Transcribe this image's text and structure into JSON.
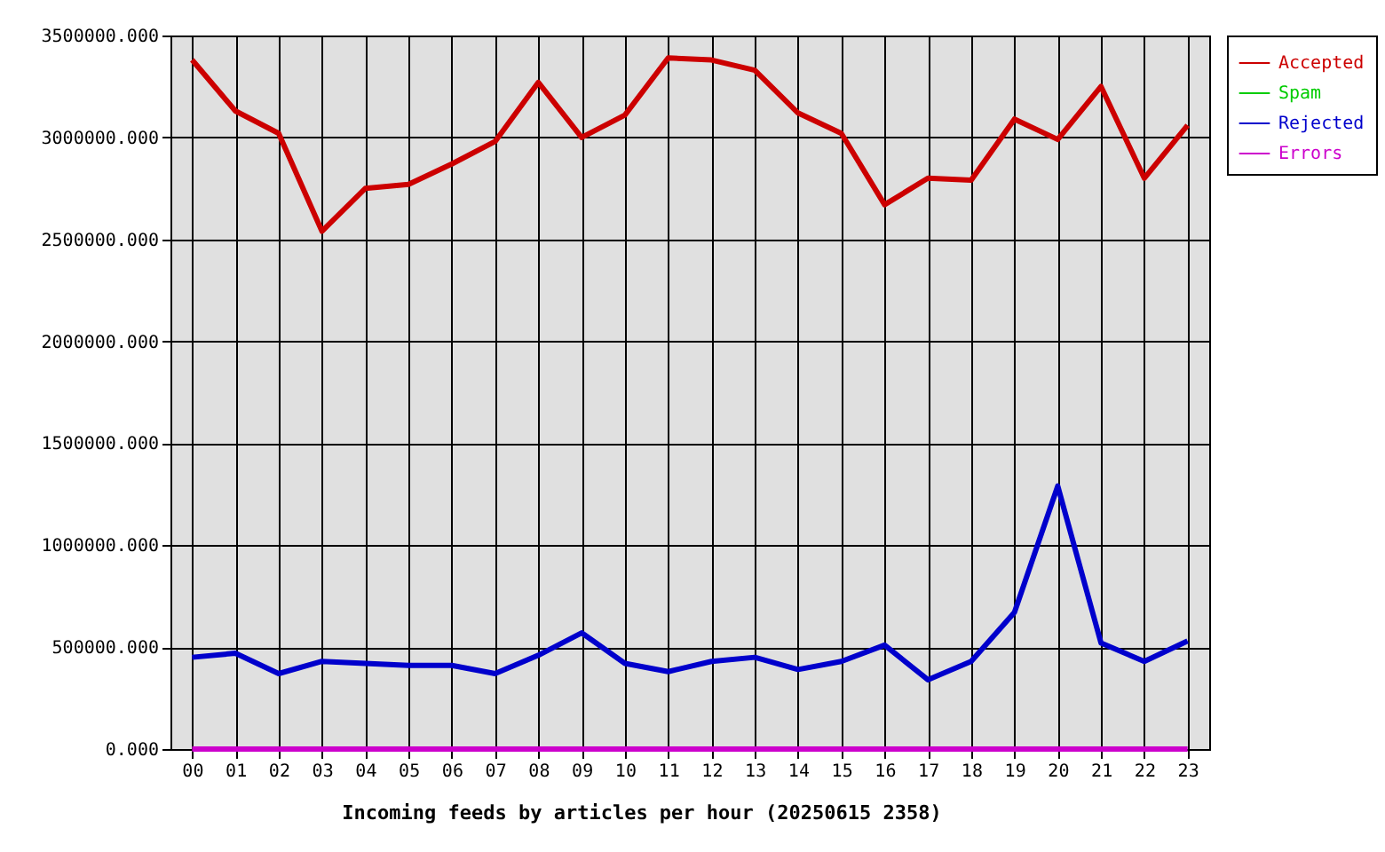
{
  "chart_data": {
    "type": "line",
    "xlabel": "Incoming feeds by articles per hour (20250615 2358)",
    "categories": [
      "00",
      "01",
      "02",
      "03",
      "04",
      "05",
      "06",
      "07",
      "08",
      "09",
      "10",
      "11",
      "12",
      "13",
      "14",
      "15",
      "16",
      "17",
      "18",
      "19",
      "20",
      "21",
      "22",
      "23"
    ],
    "series": [
      {
        "name": "Accepted",
        "color": "#cc0000",
        "values": [
          3380000,
          3130000,
          3020000,
          2540000,
          2750000,
          2770000,
          2870000,
          2980000,
          3270000,
          3000000,
          3110000,
          3390000,
          3380000,
          3330000,
          3120000,
          3020000,
          2670000,
          2800000,
          2790000,
          3090000,
          2990000,
          3250000,
          2800000,
          3060000
        ]
      },
      {
        "name": "Spam",
        "color": "#00cc00",
        "values": [
          null,
          null,
          null,
          null,
          null,
          null,
          null,
          null,
          null,
          null,
          null,
          null,
          null,
          null,
          null,
          null,
          null,
          null,
          null,
          null,
          null,
          null,
          null,
          null
        ]
      },
      {
        "name": "Rejected",
        "color": "#0000cc",
        "values": [
          450000,
          470000,
          370000,
          430000,
          420000,
          410000,
          410000,
          370000,
          460000,
          570000,
          420000,
          380000,
          430000,
          450000,
          390000,
          430000,
          510000,
          340000,
          430000,
          670000,
          1290000,
          520000,
          430000,
          530000
        ]
      },
      {
        "name": "Errors",
        "color": "#cc00cc",
        "values": [
          0,
          0,
          0,
          0,
          0,
          0,
          0,
          0,
          0,
          0,
          0,
          0,
          0,
          0,
          0,
          0,
          0,
          0,
          0,
          0,
          0,
          0,
          0,
          0
        ]
      }
    ],
    "ylim": [
      0,
      3500000
    ],
    "yticks": [
      {
        "value": 0,
        "label": "0.000"
      },
      {
        "value": 500000,
        "label": "500000.000"
      },
      {
        "value": 1000000,
        "label": "1000000.000"
      },
      {
        "value": 1500000,
        "label": "1500000.000"
      },
      {
        "value": 2000000,
        "label": "2000000.000"
      },
      {
        "value": 2500000,
        "label": "2500000.000"
      },
      {
        "value": 3000000,
        "label": "3000000.000"
      },
      {
        "value": 3500000,
        "label": "3500000.000"
      }
    ],
    "grid": true,
    "legend": "top right",
    "marker": "none",
    "line_style": "solid"
  }
}
